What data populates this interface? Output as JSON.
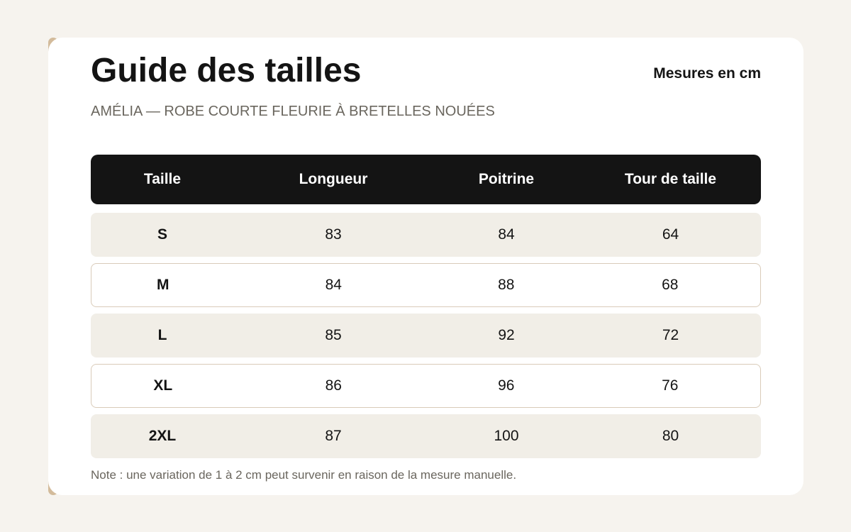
{
  "header": {
    "title": "Guide des tailles",
    "units_label": "Mesures en cm",
    "subtitle": "AMÉLIA — ROBE COURTE FLEURIE À BRETELLES NOUÉES"
  },
  "table": {
    "columns": [
      "Taille",
      "Longueur",
      "Poitrine",
      "Tour de taille"
    ],
    "rows": [
      {
        "size": "S",
        "longueur": "83",
        "poitrine": "84",
        "tour_de_taille": "64"
      },
      {
        "size": "M",
        "longueur": "84",
        "poitrine": "88",
        "tour_de_taille": "68"
      },
      {
        "size": "L",
        "longueur": "85",
        "poitrine": "92",
        "tour_de_taille": "72"
      },
      {
        "size": "XL",
        "longueur": "86",
        "poitrine": "96",
        "tour_de_taille": "76"
      },
      {
        "size": "2XL",
        "longueur": "87",
        "poitrine": "100",
        "tour_de_taille": "80"
      }
    ]
  },
  "footer": {
    "note": "Note : une variation de 1 à 2 cm peut survenir en raison de la mesure manuelle."
  },
  "colors": {
    "background": "#f6f3ee",
    "accent_bar": "#d3bb9b",
    "header_row": "#141414",
    "shaded_row": "#f1eee7",
    "row_border": "#d9cbb9"
  }
}
